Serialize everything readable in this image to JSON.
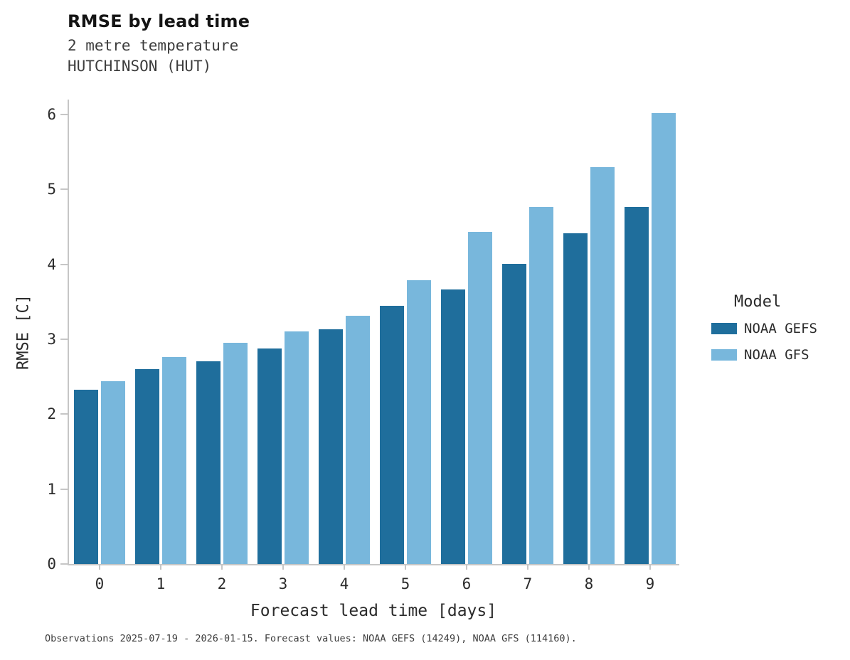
{
  "header": {
    "title": "RMSE by lead time",
    "subtitle1": "2 metre temperature",
    "subtitle2": "HUTCHINSON (HUT)"
  },
  "chart_data": {
    "type": "bar",
    "title": "RMSE by lead time",
    "subtitle": [
      "2 metre temperature",
      "HUTCHINSON (HUT)"
    ],
    "categories": [
      0,
      1,
      2,
      3,
      4,
      5,
      6,
      7,
      8,
      9
    ],
    "series": [
      {
        "name": "NOAA GEFS",
        "color": "#1f6e9c",
        "values": [
          2.33,
          2.6,
          2.71,
          2.88,
          3.13,
          3.45,
          3.66,
          4.01,
          4.41,
          4.77
        ]
      },
      {
        "name": "NOAA GFS",
        "color": "#78b7dc",
        "values": [
          2.44,
          2.76,
          2.95,
          3.1,
          3.31,
          3.79,
          4.43,
          4.77,
          5.3,
          6.02
        ]
      }
    ],
    "xlabel": "Forecast lead time [days]",
    "ylabel": "RMSE [C]",
    "ylim": [
      0,
      6
    ],
    "yticks": [
      0,
      1,
      2,
      3,
      4,
      5,
      6
    ],
    "legend_title": "Model",
    "legend_position": "right",
    "grid": false,
    "axis_color": "#c6c6c6",
    "background": "#ffffff"
  },
  "footer": {
    "note": "Observations 2025-07-19 - 2026-01-15. Forecast values: NOAA GEFS (14249), NOAA GFS (114160)."
  }
}
